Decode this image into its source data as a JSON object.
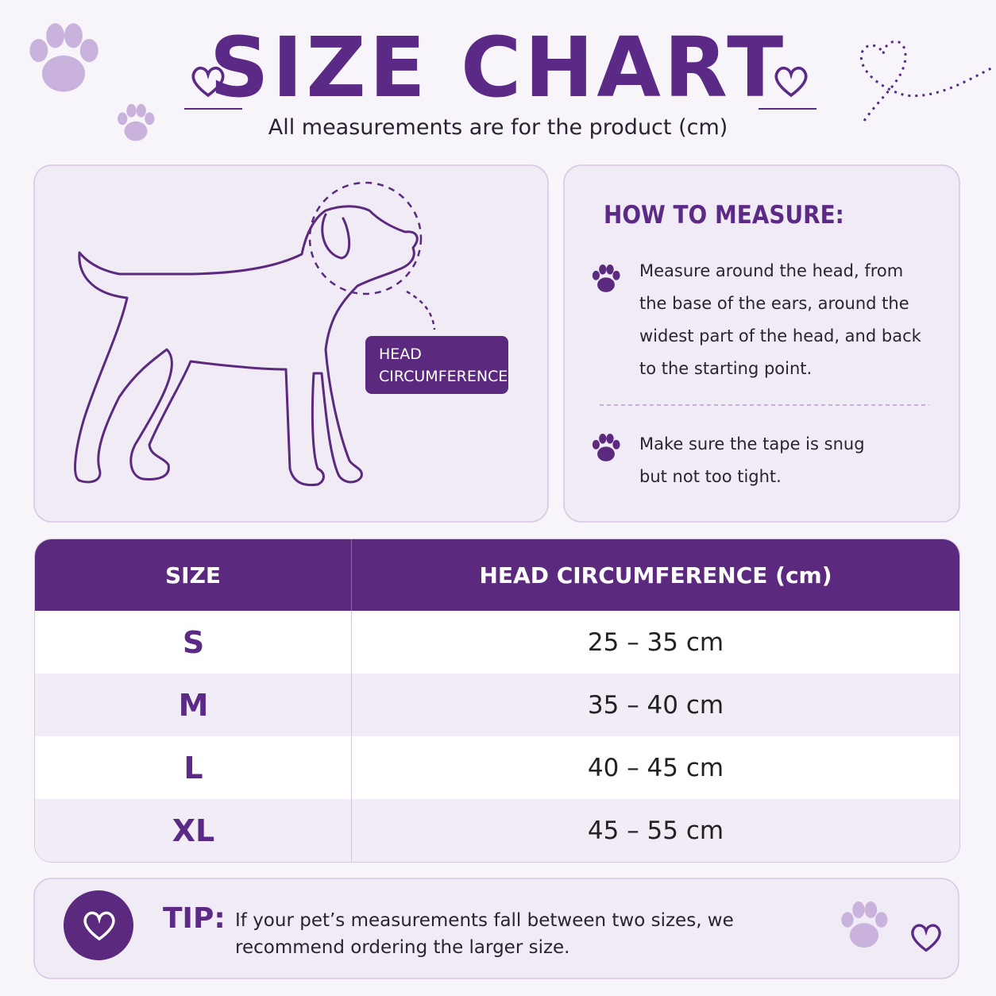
{
  "header": {
    "title": "SIZE CHART",
    "subtitle": "All measurements are for the product (cm)"
  },
  "illustration": {
    "label_lines": [
      "HEAD",
      "CIRCUMFERENCE"
    ]
  },
  "how_to_measure": {
    "heading": "HOW TO MEASURE:",
    "steps": [
      "Measure around the head, from the base of the ears, around the widest part of the head, and back to the starting point.",
      "Make sure the tape is snug but not too tight."
    ]
  },
  "table": {
    "header": [
      "SIZE",
      "HEAD CIRCUMFERENCE (cm)"
    ],
    "rows": [
      [
        "S",
        "25 – 35 cm"
      ],
      [
        "M",
        "35 – 40 cm"
      ],
      [
        "L",
        "40 – 45 cm"
      ],
      [
        "XL",
        "45 – 55 cm"
      ]
    ]
  },
  "tip": {
    "label": "TIP:",
    "text": "If your pet’s measurements fall between two sizes, we recommend ordering the larger size."
  }
}
